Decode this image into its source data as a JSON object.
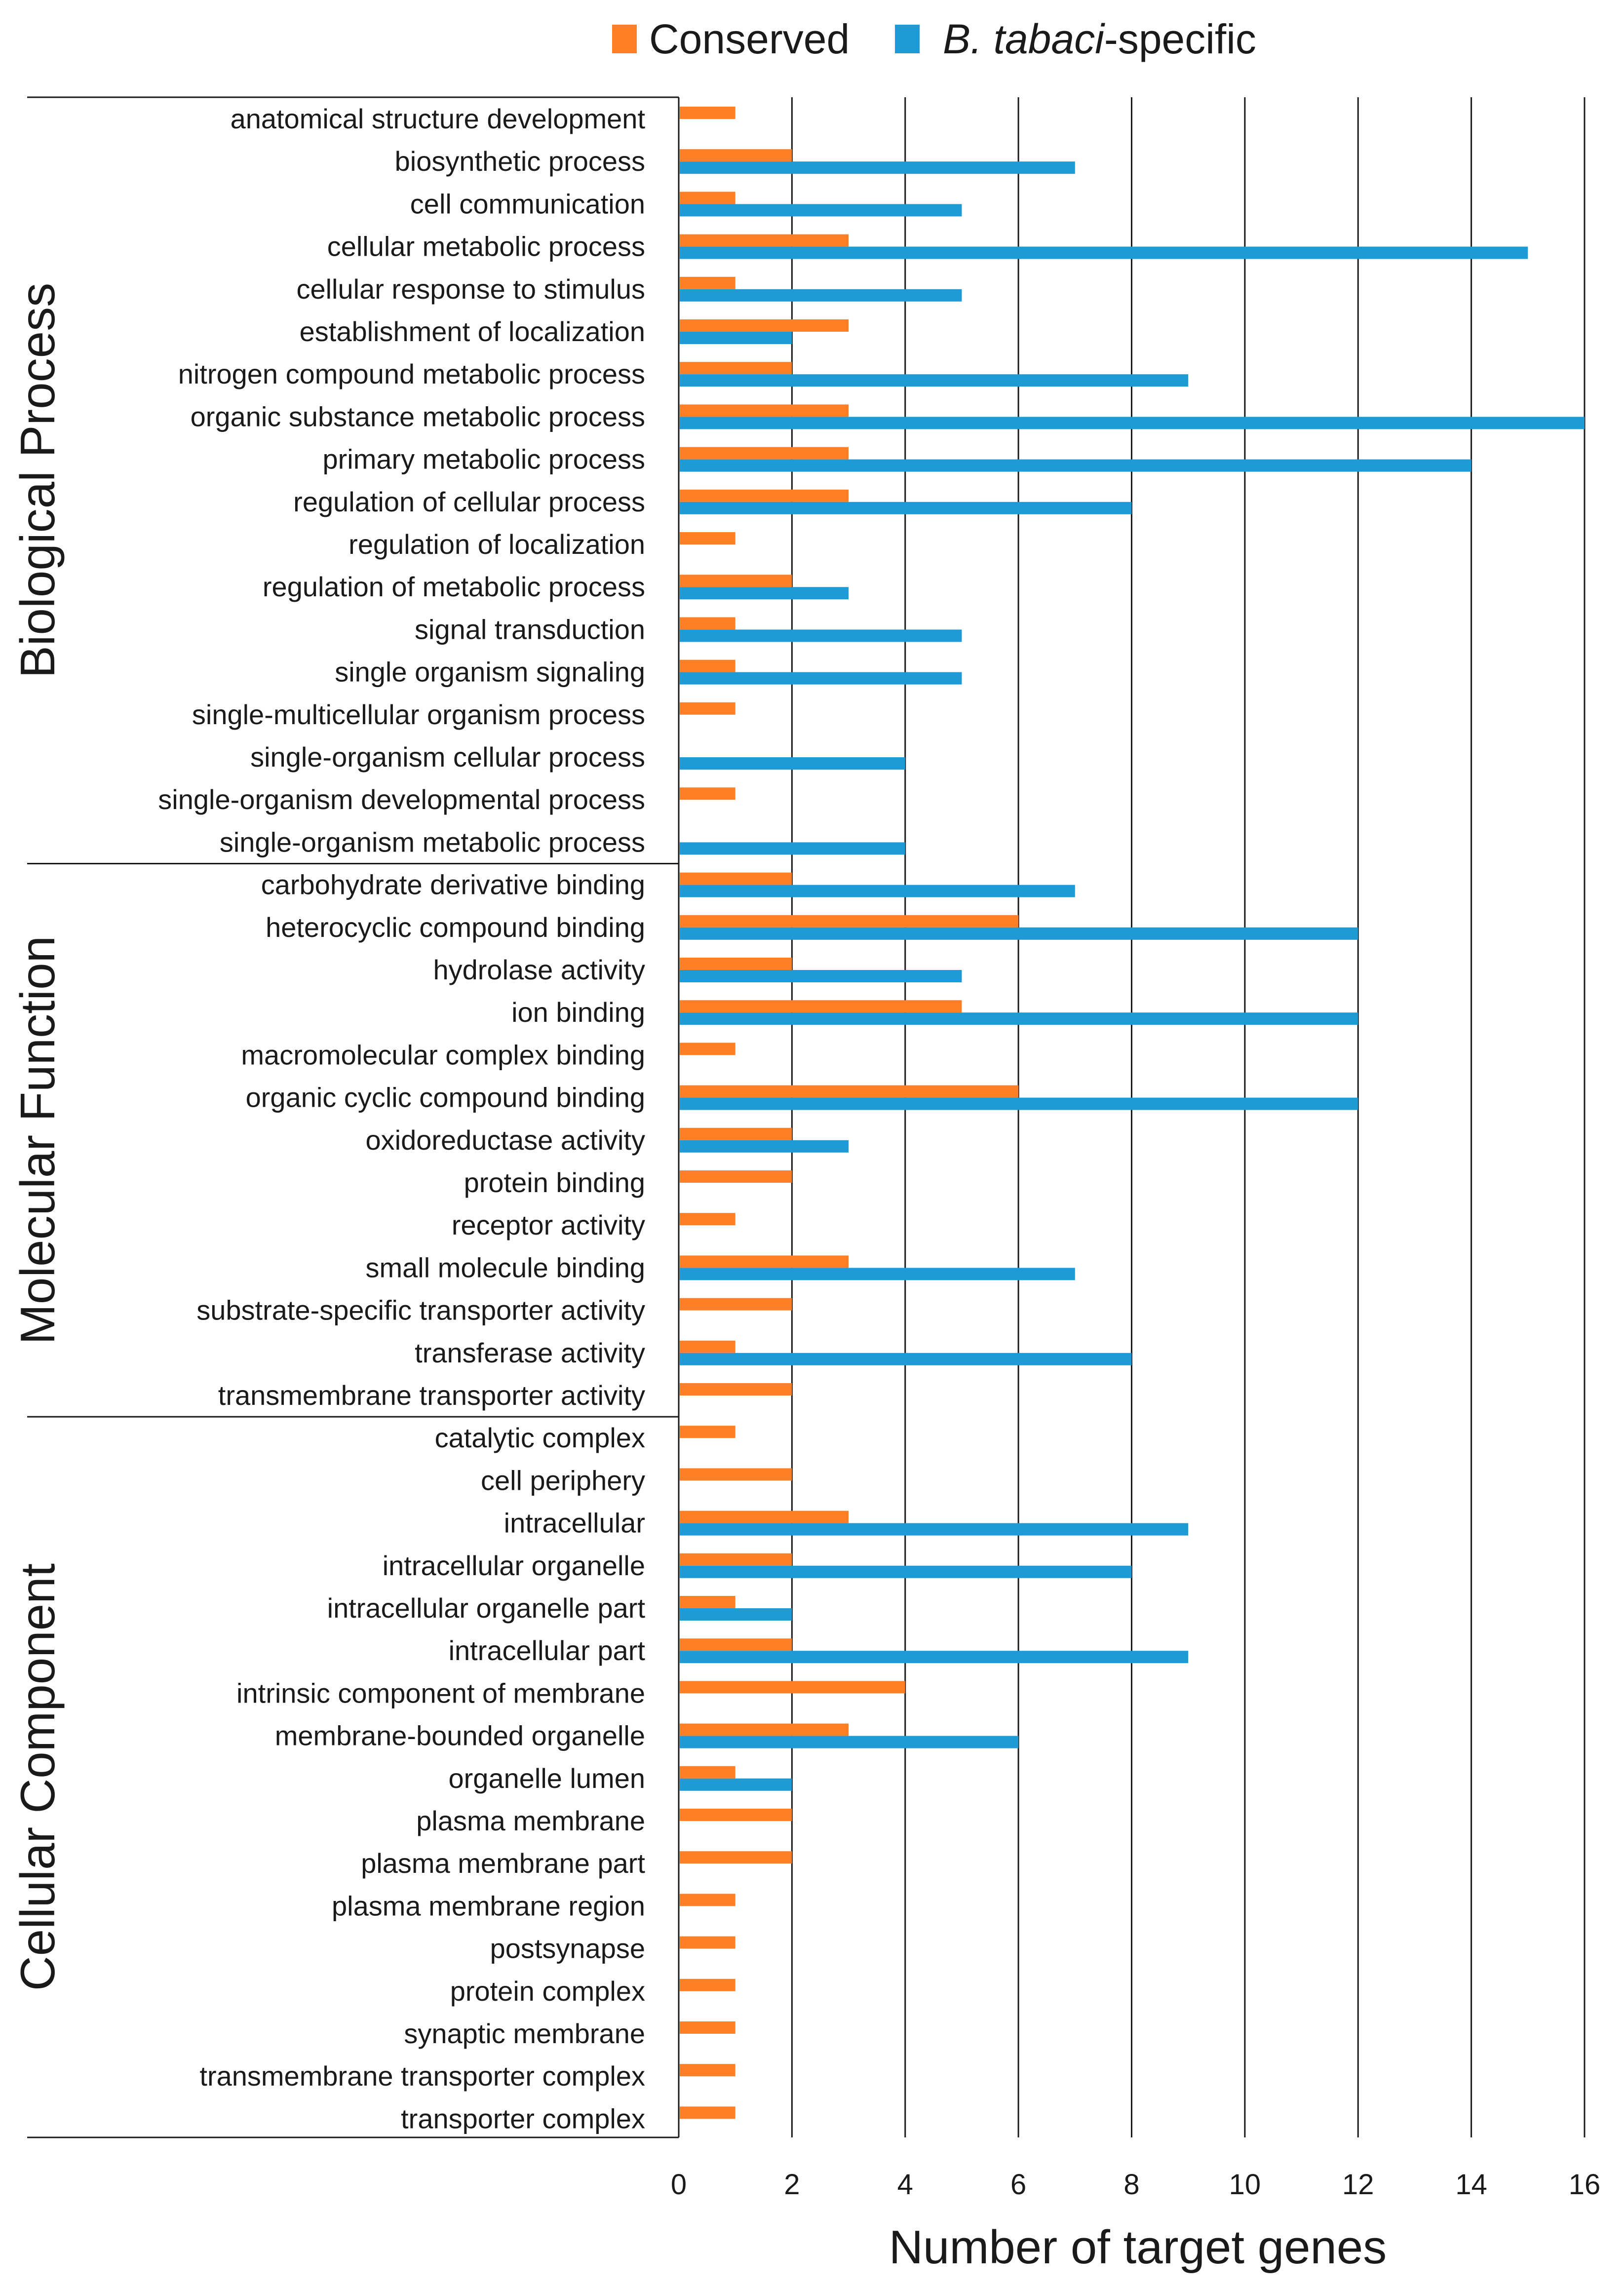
{
  "chart_data": {
    "type": "bar",
    "orientation": "horizontal",
    "xlabel": "Number of target genes",
    "xlim": [
      0,
      16
    ],
    "xticks": [
      0,
      2,
      4,
      6,
      8,
      10,
      12,
      14,
      16
    ],
    "grid": "vertical gridlines",
    "legend": {
      "placement": "top",
      "entries": [
        {
          "name": "Conserved",
          "color": "#FF7F27"
        },
        {
          "name_prefix": "B. tabaci",
          "name_suffix": "-specific",
          "name": "B. tabaci-specific",
          "color": "#1E9AD6"
        }
      ]
    },
    "colors": {
      "Conserved": "#FF7F27",
      "B. tabaci-specific": "#1E9AD6"
    },
    "groups": [
      {
        "name": "Biological Process",
        "start": 0,
        "end": 17
      },
      {
        "name": "Molecular Function",
        "start": 18,
        "end": 30
      },
      {
        "name": "Cellular Component",
        "start": 31,
        "end": 47
      }
    ],
    "categories": [
      "anatomical structure development",
      "biosynthetic process",
      "cell communication",
      "cellular metabolic process",
      "cellular response to stimulus",
      "establishment of localization",
      "nitrogen compound metabolic process",
      "organic substance metabolic process",
      "primary metabolic process",
      "regulation of cellular process",
      "regulation of localization",
      "regulation of metabolic process",
      "signal transduction",
      "single organism signaling",
      "single-multicellular organism process",
      "single-organism cellular process",
      "single-organism developmental process",
      "single-organism metabolic process",
      "carbohydrate derivative binding",
      "heterocyclic compound binding",
      "hydrolase activity",
      "ion binding",
      "macromolecular complex binding",
      "organic cyclic compound binding",
      "oxidoreductase activity",
      "protein binding",
      "receptor activity",
      "small molecule binding",
      "substrate-specific transporter activity",
      "transferase activity",
      "transmembrane transporter activity",
      "catalytic complex",
      "cell periphery",
      "intracellular",
      "intracellular organelle",
      "intracellular organelle part",
      "intracellular part",
      "intrinsic component of membrane",
      "membrane-bounded organelle",
      "organelle lumen",
      "plasma membrane",
      "plasma membrane part",
      "plasma membrane region",
      "postsynapse",
      "protein complex",
      "synaptic membrane",
      "transmembrane transporter complex",
      "transporter complex"
    ],
    "series": [
      {
        "name": "Conserved",
        "values": [
          1,
          2,
          1,
          3,
          1,
          3,
          2,
          3,
          3,
          3,
          1,
          2,
          1,
          1,
          1,
          0,
          1,
          0,
          2,
          6,
          2,
          5,
          1,
          6,
          2,
          2,
          1,
          3,
          2,
          1,
          2,
          1,
          2,
          3,
          2,
          1,
          2,
          4,
          3,
          1,
          2,
          2,
          1,
          1,
          1,
          1,
          1,
          1
        ]
      },
      {
        "name": "B. tabaci-specific",
        "values": [
          0,
          7,
          5,
          15,
          5,
          2,
          9,
          16,
          14,
          8,
          0,
          3,
          5,
          5,
          0,
          4,
          0,
          4,
          7,
          12,
          5,
          12,
          0,
          12,
          3,
          0,
          0,
          7,
          0,
          8,
          0,
          0,
          0,
          9,
          8,
          2,
          9,
          0,
          6,
          2,
          0,
          0,
          0,
          0,
          0,
          0,
          0,
          0
        ]
      }
    ]
  }
}
